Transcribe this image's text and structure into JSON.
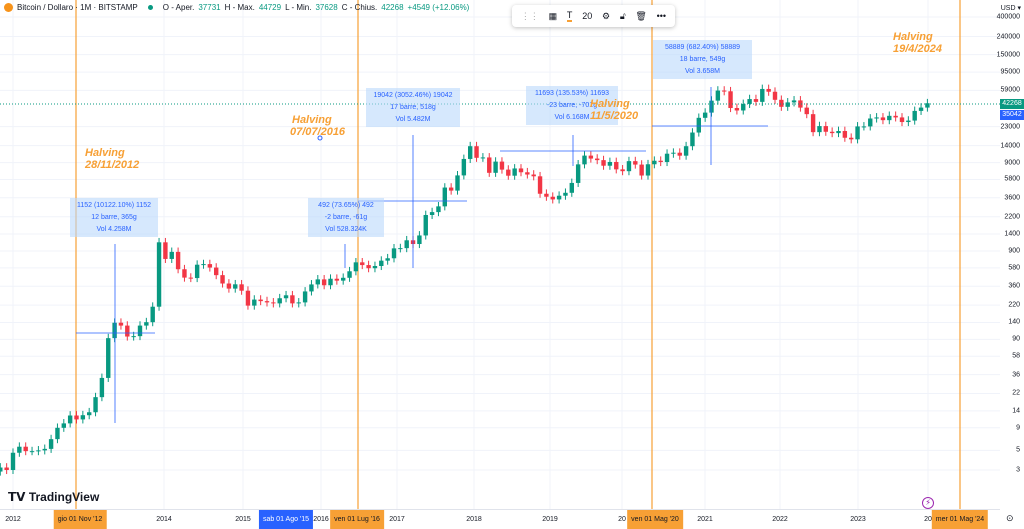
{
  "header": {
    "symbol": "Bitcoin / Dollaro · 1M · BITSTAMP",
    "o_label": "O - Aper.",
    "open": "37731",
    "h_label": "H - Max.",
    "high": "44729",
    "l_label": "L - Min.",
    "low": "37628",
    "c_label": "C - Chius.",
    "close": "42268",
    "change": "+4549 (+12.06%)"
  },
  "toolbar": {
    "font_size": "20",
    "more": "•••"
  },
  "axis": {
    "currency": "USD ▾"
  },
  "logo": "TradingView",
  "price_labels": {
    "last": "42268",
    "crosshair": "35042",
    "last_color": "#089981",
    "crosshair_color": "#2962ff"
  },
  "x_markers": {
    "m1": "gio 01 Nov '12",
    "m2": "sab 01 Ago '15",
    "m3": "ven 01 Lug '16",
    "m4": "ven 01 Mag '20",
    "m5": "mer 01 Mag '24"
  },
  "halvings": [
    {
      "t1": "Halving",
      "t2": "28/11/2012"
    },
    {
      "t1": "Halving",
      "t2": "07/07/2016"
    },
    {
      "t1": "Halving",
      "t2": "11/5/2020"
    },
    {
      "t1": "Halving",
      "t2": "19/4/2024"
    }
  ],
  "measures": [
    {
      "l1": "1152 (10122.10%) 1152",
      "l2": "12 barre, 365g",
      "l3": "Vol 4.258M"
    },
    {
      "l1": "492 (73.65%) 492",
      "l2": "-2 barre, -61g",
      "l3": "Vol 528.324K"
    },
    {
      "l1": "19042 (3052.46%) 19042",
      "l2": "17 barre, 518g",
      "l3": "Vol 5.482M"
    },
    {
      "l1": "11693 (135.53%) 11693",
      "l2": "-23 barre, -701g",
      "l3": "Vol 6.168M"
    },
    {
      "l1": "58889 (682.40%) 58889",
      "l2": "18 barre, 549g",
      "l3": "Vol 3.658M"
    }
  ],
  "chart_data": {
    "type": "candlestick",
    "title": "Bitcoin / Dollaro · 1M · BITSTAMP",
    "yscale": "log",
    "y_ticks": [
      "400000",
      "240000",
      "150000",
      "95000",
      "59000",
      "23000",
      "14000",
      "9000",
      "5800",
      "3600",
      "2200",
      "1400",
      "900",
      "580",
      "360",
      "220",
      "140",
      "90",
      "58",
      "36",
      "22",
      "14",
      "9",
      "5",
      "3"
    ],
    "x_ticks": [
      "2012",
      "2014",
      "2015",
      "2016",
      "2017",
      "2018",
      "2019",
      "20",
      "2021",
      "2022",
      "2023",
      "20"
    ],
    "start": "2011-10",
    "up_color": "#089981",
    "down_color": "#f23645",
    "closes": [
      3.2,
      3.0,
      4.7,
      5.5,
      4.9,
      4.9,
      5.0,
      5.2,
      6.7,
      9.0,
      10.1,
      12.4,
      11.2,
      12.5,
      13.5,
      20,
      33,
      93,
      139,
      129,
      97,
      98,
      129,
      141,
      211,
      1129,
      732,
      880,
      560,
      450,
      445,
      630,
      640,
      585,
      480,
      386,
      338,
      378,
      320,
      217,
      254,
      244,
      236,
      230,
      263,
      284,
      230,
      236,
      314,
      377,
      430,
      369,
      437,
      416,
      448,
      531,
      670,
      624,
      575,
      609,
      700,
      745,
      964,
      970,
      1190,
      1080,
      1350,
      2300,
      2480,
      2880,
      4700,
      4340,
      6450,
      9900,
      13800,
      10200,
      10300,
      6900,
      9240,
      7500,
      6400,
      7730,
      7000,
      6600,
      6300,
      4000,
      3700,
      3450,
      3800,
      4100,
      5300,
      8600,
      10800,
      10000,
      9600,
      8300,
      9150,
      7550,
      7200,
      9350,
      8550,
      6430,
      8620,
      9450,
      9140,
      11350,
      11650,
      10780,
      13800,
      19700,
      28900,
      33100,
      45200,
      58800,
      57700,
      37300,
      35000,
      41500,
      47100,
      43800,
      61300,
      57000,
      46200,
      38500,
      43200,
      45500,
      37700,
      31800,
      19900,
      23300,
      20100,
      19400,
      20500,
      17200,
      16500,
      23100,
      23100,
      28400,
      29200,
      27200,
      30450,
      29200,
      25900,
      26900,
      34600,
      37731,
      42268
    ]
  }
}
